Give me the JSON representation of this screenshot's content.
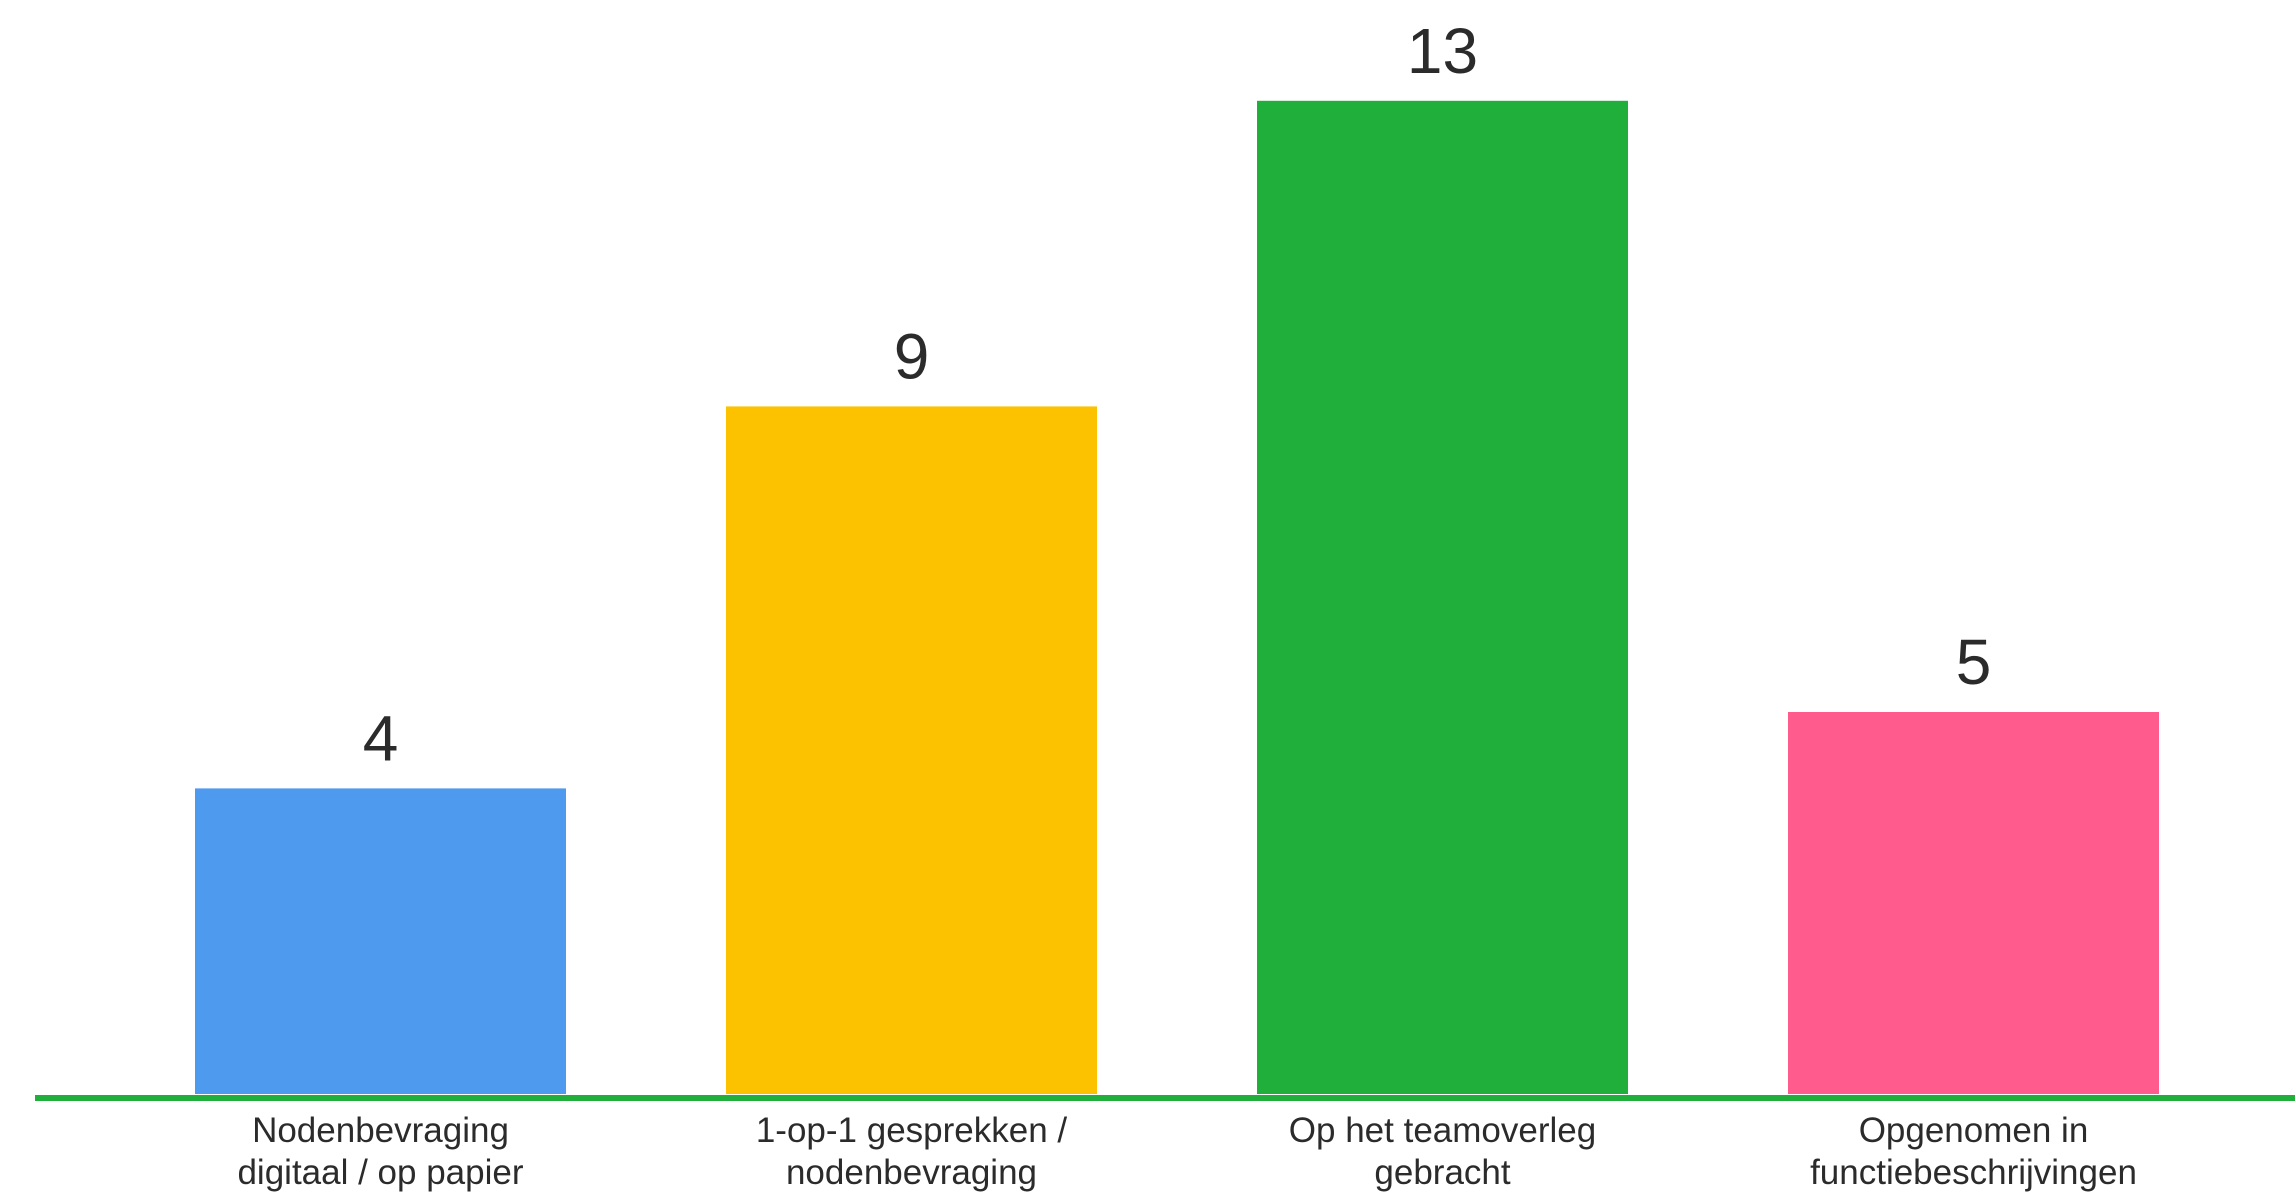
{
  "chart_data": {
    "type": "bar",
    "categories": [
      [
        "Nodenbevraging",
        "digitaal / op papier"
      ],
      [
        "1-op-1 gesprekken /",
        "nodenbevraging"
      ],
      [
        "Op het teamoverleg",
        "gebracht"
      ],
      [
        "Opgenomen in",
        "functiebeschrijvingen"
      ]
    ],
    "values": [
      4,
      9,
      13,
      5
    ],
    "value_labels": [
      "4",
      "9",
      "13",
      "5"
    ],
    "colors": [
      "#4d9aef",
      "#fcc200",
      "#1faf3a",
      "#ff5c8d"
    ],
    "axis_color": "#1faf3a",
    "title": "",
    "xlabel": "",
    "ylabel": "",
    "ylim": [
      0,
      13
    ],
    "grid": false,
    "legend": "none"
  }
}
